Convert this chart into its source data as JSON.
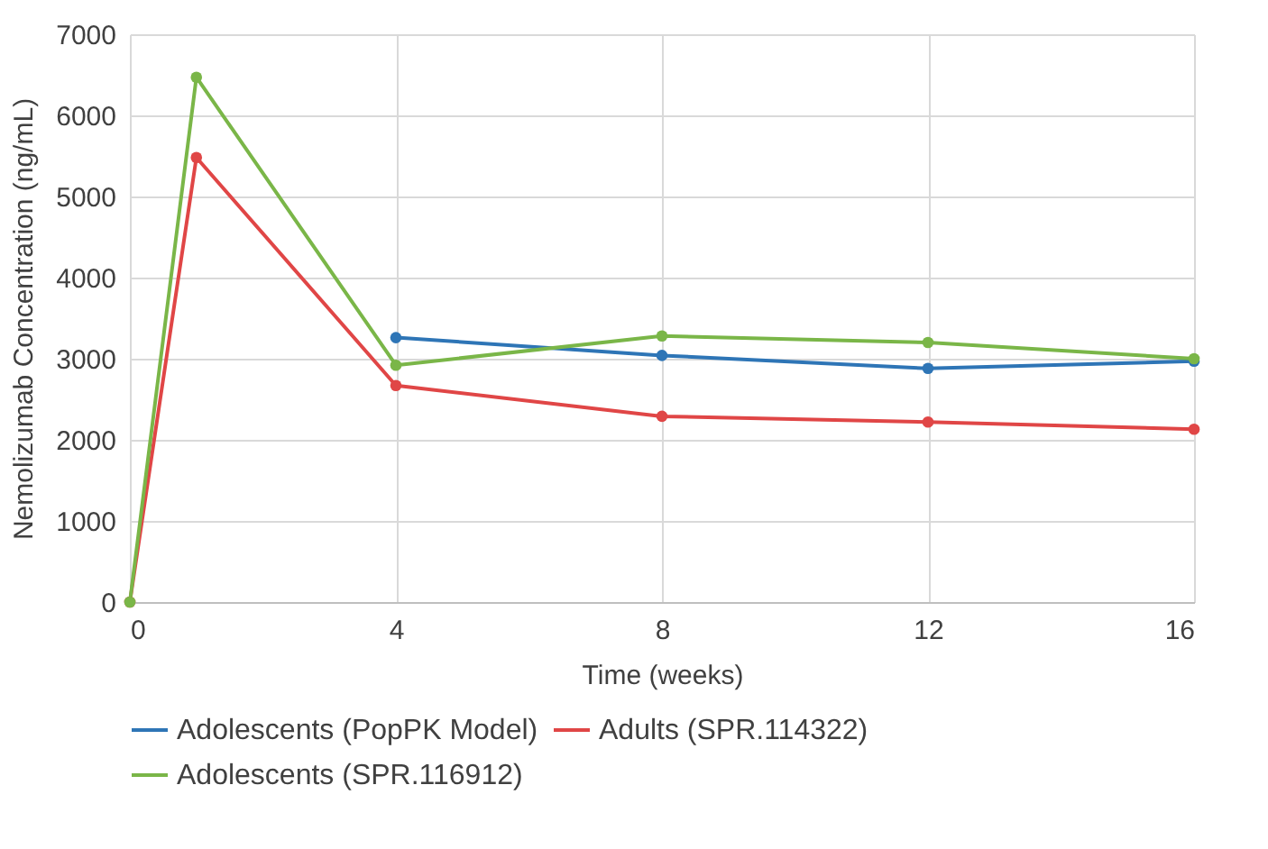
{
  "chart_data": {
    "type": "line",
    "xlabel": "Time (weeks)",
    "ylabel": "Nemolizumab Concentration (ng/mL)",
    "xlim": [
      0,
      16
    ],
    "xticks": [
      0,
      4,
      8,
      12,
      16
    ],
    "ylim": [
      0,
      7000
    ],
    "yticks": [
      0,
      1000,
      2000,
      3000,
      4000,
      5000,
      6000,
      7000
    ],
    "grid": true,
    "legend": "bottom",
    "marker": "circle",
    "series": [
      {
        "name": "Adolescents (PopPK Model)",
        "color": "#2e75b6",
        "x": [
          4,
          8,
          12,
          16
        ],
        "values": [
          3260,
          3040,
          2880,
          2970
        ]
      },
      {
        "name": "Adults (SPR.114322)",
        "color": "#e04646",
        "x": [
          0,
          1,
          4,
          8,
          12,
          16
        ],
        "values": [
          0,
          5480,
          2670,
          2290,
          2220,
          2130
        ]
      },
      {
        "name": "Adolescents (SPR.116912)",
        "color": "#7ab648",
        "x": [
          0,
          1,
          4,
          8,
          12,
          16
        ],
        "values": [
          0,
          6470,
          2920,
          3280,
          3200,
          3000
        ]
      }
    ]
  }
}
